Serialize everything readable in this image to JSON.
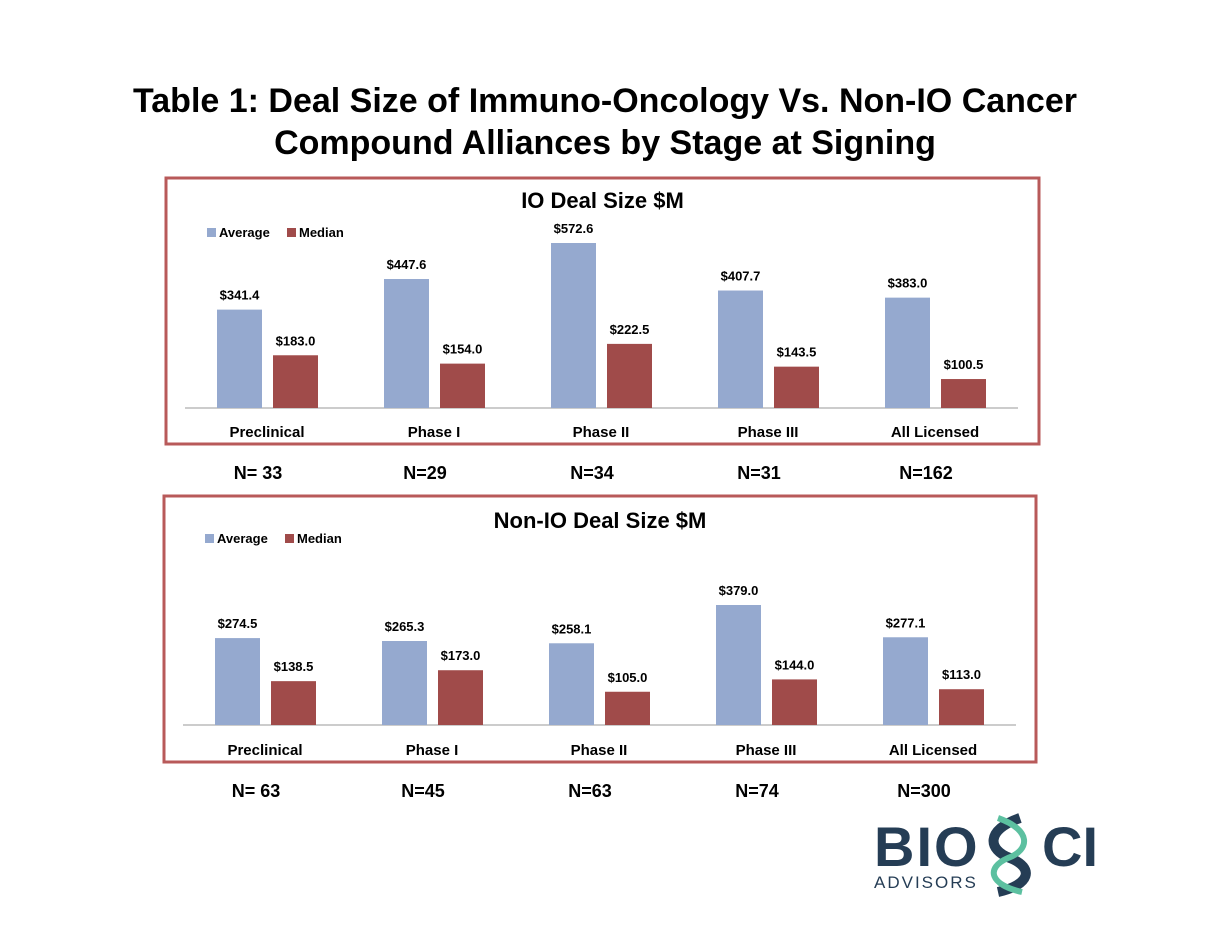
{
  "title_line1": "Table 1:  Deal Size of Immuno-Oncology Vs. Non-IO Cancer",
  "title_line2": "Compound Alliances by Stage at Signing",
  "logo": {
    "text_main": "BIOSCI",
    "text_sub": "ADVISORS"
  },
  "colors": {
    "average": "#95a9cf",
    "median": "#a04b4a",
    "frame": "#b85a5a",
    "logo_dark": "#253d55",
    "logo_teal": "#5cc0a0"
  },
  "chart_data": [
    {
      "type": "bar",
      "title": "IO Deal Size $M",
      "categories": [
        "Preclinical",
        "Phase I",
        "Phase II",
        "Phase III",
        "All Licensed"
      ],
      "series": [
        {
          "name": "Average",
          "values": [
            341.4,
            447.6,
            572.6,
            407.7,
            383.0
          ],
          "labels": [
            "$341.4",
            "$447.6",
            "$572.6",
            "$407.7",
            "$383.0"
          ]
        },
        {
          "name": "Median",
          "values": [
            183.0,
            154.0,
            222.5,
            143.5,
            100.5
          ],
          "labels": [
            "$183.0",
            "$154.0",
            "$222.5",
            "$143.5",
            "$100.5"
          ]
        }
      ],
      "n_labels": [
        "N= 33",
        "N=29",
        "N=34",
        "N=31",
        "N=162"
      ],
      "legend": "top-left",
      "grid": false
    },
    {
      "type": "bar",
      "title": "Non-IO Deal Size $M",
      "categories": [
        "Preclinical",
        "Phase I",
        "Phase II",
        "Phase III",
        "All Licensed"
      ],
      "series": [
        {
          "name": "Average",
          "values": [
            274.5,
            265.3,
            258.1,
            379.0,
            277.1
          ],
          "labels": [
            "$274.5",
            "$265.3",
            "$258.1",
            "$379.0",
            "$277.1"
          ]
        },
        {
          "name": "Median",
          "values": [
            138.5,
            173.0,
            105.0,
            144.0,
            113.0
          ],
          "labels": [
            "$138.5",
            "$173.0",
            "$105.0",
            "$144.0",
            "$113.0"
          ]
        }
      ],
      "n_labels": [
        "N= 63",
        "N=45",
        "N=63",
        "N=74",
        "N=300"
      ],
      "legend": "top-left",
      "grid": false
    }
  ]
}
